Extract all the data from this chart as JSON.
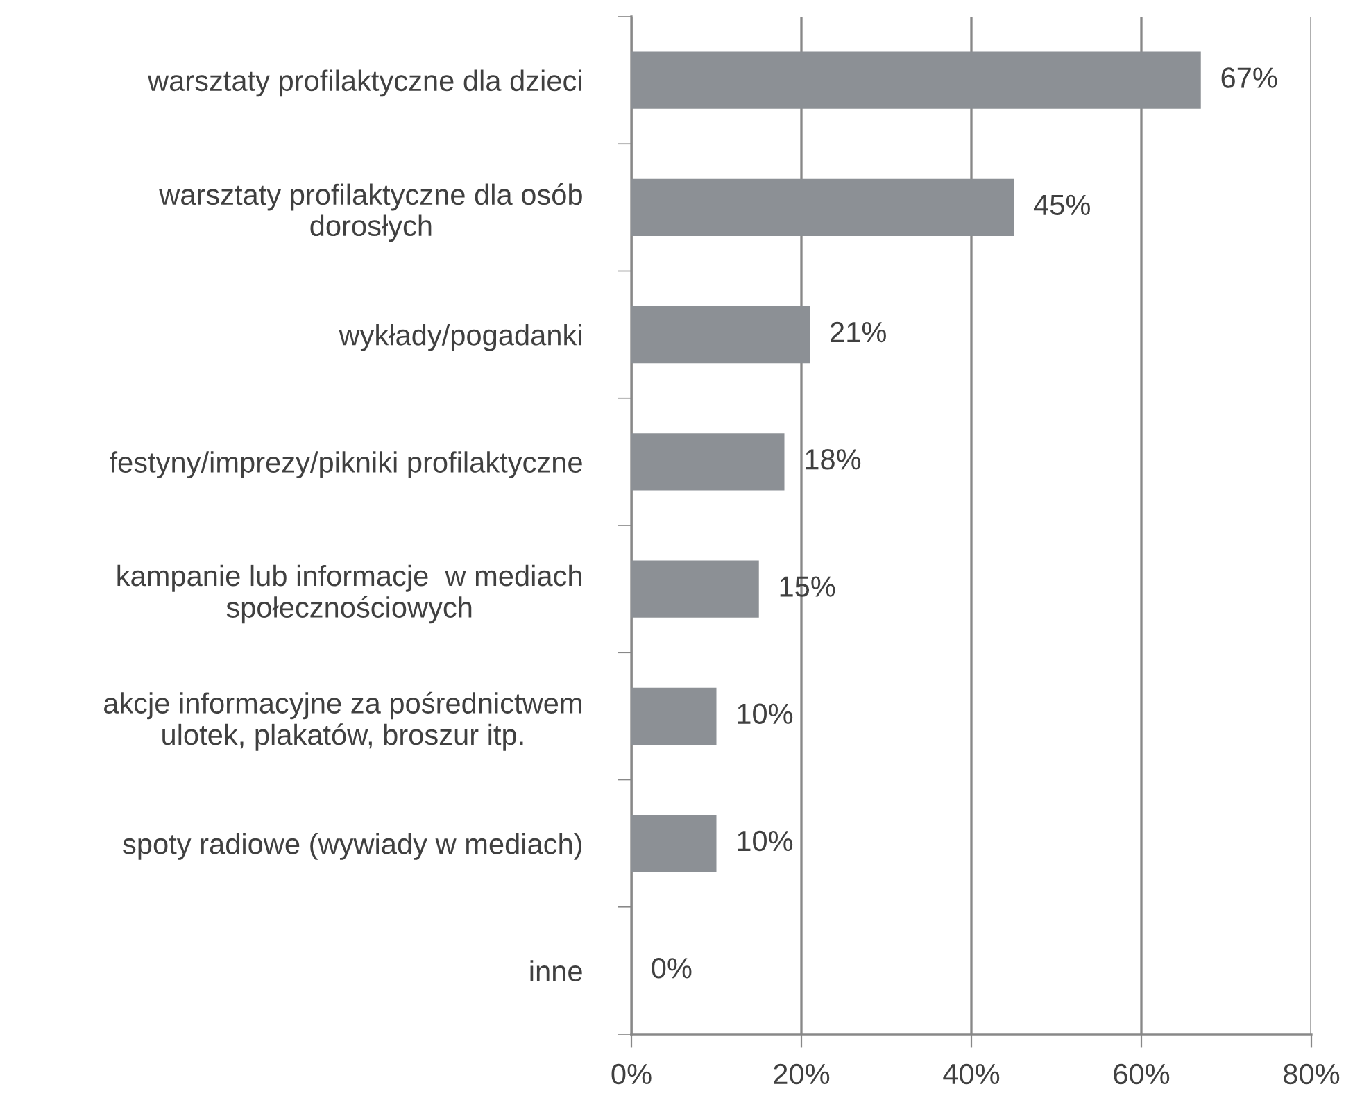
{
  "chart_data": {
    "type": "bar",
    "orientation": "horizontal",
    "categories": [
      "warsztaty profilaktyczne dla dzieci",
      "warsztaty profilaktyczne dla osób\ndorosłych",
      "wykłady/pogadanki",
      "festyny/imprezy/pikniki profilaktyczne",
      "kampanie lub informacje  w mediach\nspołecznościowych",
      "akcje informacyjne za pośrednictwem\nulotek, plakatów, broszur itp.",
      "spoty radiowe (wywiady w mediach)",
      "inne"
    ],
    "values": [
      67,
      45,
      21,
      18,
      15,
      10,
      10,
      0
    ],
    "value_labels": [
      "67%",
      "45%",
      "21%",
      "18%",
      "15%",
      "10%",
      "10%",
      "0%"
    ],
    "color": "#8c9095",
    "xlim": [
      0,
      80
    ],
    "xticks": [
      {
        "value": 0,
        "label": "0%"
      },
      {
        "value": 20,
        "label": "20%"
      },
      {
        "value": 40,
        "label": "40%"
      },
      {
        "value": 60,
        "label": "60%"
      },
      {
        "value": 80,
        "label": "80%"
      }
    ],
    "grid": "x"
  }
}
